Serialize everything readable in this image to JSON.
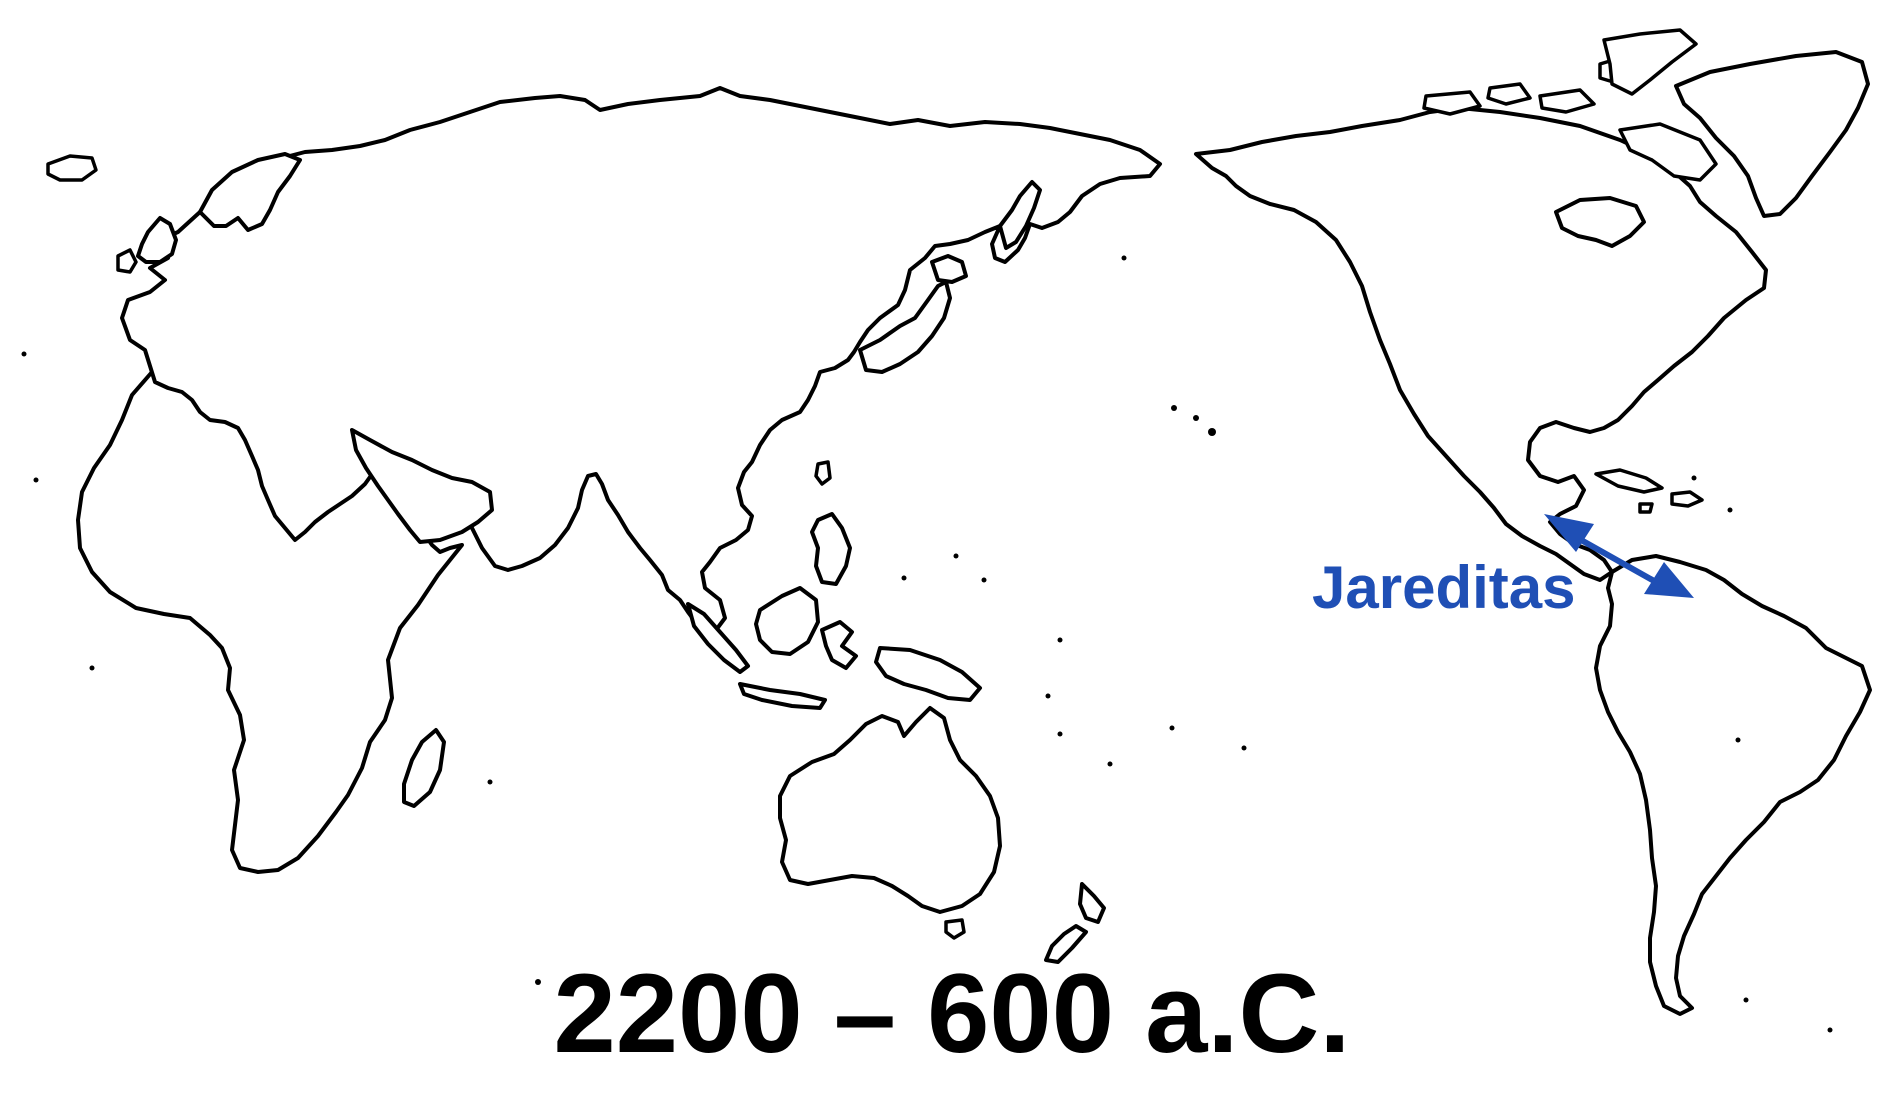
{
  "map": {
    "projection": "Pacific-centered world outline",
    "land_fill": "#ffffff",
    "outline_color": "#000000"
  },
  "migration": {
    "label": "Jareditas",
    "color": "#1f4fb5",
    "from_region": "Mesoamerica",
    "to_region": "northern South America",
    "arrow": "double-headed"
  },
  "caption": {
    "date_range": "2200 – 600 a.C."
  }
}
